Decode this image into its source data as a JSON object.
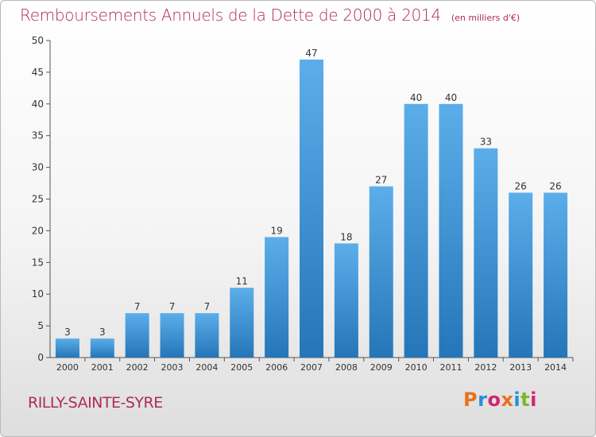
{
  "header": {
    "title": "Remboursements Annuels de la Dette de 2000 à 2014",
    "unit": "(en milliers d'€)"
  },
  "footer": {
    "commune": "RILLY-SAINTE-SYRE",
    "brand": "Proxiti",
    "brand_colors": [
      "#e8731a",
      "#2a8fd6",
      "#d6246e",
      "#e8731a",
      "#2a8fd6",
      "#7ab829",
      "#d6246e"
    ]
  },
  "colors": {
    "accent": "#b02a5a",
    "bar_top": "#5caeea",
    "bar_bottom": "#2476b8",
    "axis": "#555555"
  },
  "chart_data": {
    "type": "bar",
    "title": "Remboursements Annuels de la Dette de 2000 à 2014",
    "subtitle": "(en milliers d'€)",
    "xlabel": "",
    "ylabel": "",
    "categories": [
      "2000",
      "2001",
      "2002",
      "2003",
      "2004",
      "2005",
      "2006",
      "2007",
      "2008",
      "2009",
      "2010",
      "2011",
      "2012",
      "2013",
      "2014"
    ],
    "values": [
      3,
      3,
      7,
      7,
      7,
      11,
      19,
      47,
      18,
      27,
      40,
      40,
      33,
      26,
      26
    ],
    "ylim": [
      0,
      50
    ],
    "yticks": [
      0,
      5,
      10,
      15,
      20,
      25,
      30,
      35,
      40,
      45,
      50
    ],
    "grid": false,
    "legend": "none"
  }
}
